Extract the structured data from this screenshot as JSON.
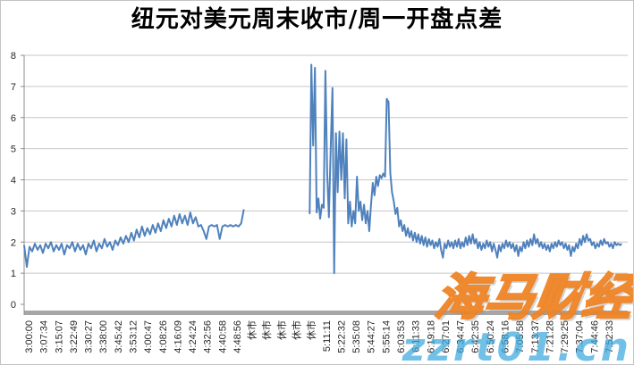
{
  "chart_data": {
    "type": "line",
    "title": "纽元对美元周末收市/周一开盘点差",
    "xlabel": "",
    "ylabel": "",
    "ylim": [
      0,
      8
    ],
    "yticks": [
      0,
      1,
      2,
      3,
      4,
      5,
      6,
      7,
      8
    ],
    "grid": "horizontal",
    "legend": "none",
    "closed_market_label": "休市",
    "categories": [
      "3:00:00",
      "3:07:34",
      "3:15:07",
      "3:22:49",
      "3:30:27",
      "3:38:00",
      "3:45:42",
      "3:53:12",
      "4:00:47",
      "4:08:26",
      "4:16:09",
      "4:24:24",
      "4:32:56",
      "4:40:58",
      "4:48:56",
      "休市",
      "休市",
      "休市",
      "休市",
      "休市",
      "5:11:11",
      "5:22:32",
      "5:35:08",
      "5:44:27",
      "5:55:14",
      "6:03:53",
      "6:11:33",
      "6:19:18",
      "6:27:01",
      "6:34:47",
      "6:42:35",
      "6:50:24",
      "6:58:16",
      "7:05:58",
      "7:13:37",
      "7:21:28",
      "7:29:25",
      "7:37:04",
      "7:44:46",
      "7:52:33"
    ],
    "series_segments": [
      {
        "start_frac": 0.0,
        "end_frac": 0.364,
        "values": [
          1.9,
          1.2,
          1.85,
          1.7,
          1.95,
          1.75,
          1.9,
          1.65,
          1.95,
          1.8,
          2.0,
          1.7,
          1.9,
          1.75,
          1.95,
          1.6,
          1.9,
          1.8,
          2.0,
          1.7,
          1.95,
          1.75,
          1.9,
          1.6,
          1.95,
          1.8,
          2.05,
          1.7,
          1.95,
          1.8,
          2.1,
          1.85,
          2.0,
          1.75,
          2.05,
          1.9,
          2.15,
          1.95,
          2.2,
          2.0,
          2.3,
          2.05,
          2.4,
          2.15,
          2.5,
          2.2,
          2.45,
          2.25,
          2.55,
          2.3,
          2.6,
          2.35,
          2.7,
          2.45,
          2.75,
          2.5,
          2.85,
          2.55,
          2.9,
          2.6,
          2.85,
          2.55,
          2.95,
          2.6,
          2.8,
          2.5,
          2.55,
          2.35,
          2.1,
          2.5,
          2.55,
          2.5,
          2.55,
          2.1,
          2.5,
          2.55,
          2.5,
          2.55,
          2.5,
          2.55,
          2.5,
          2.6,
          3.05
        ]
      },
      {
        "start_frac": 0.473,
        "end_frac": 0.99,
        "values": [
          2.9,
          7.7,
          5.1,
          7.6,
          2.95,
          3.4,
          2.75,
          3.2,
          3.1,
          7.5,
          4.2,
          2.8,
          5.0,
          6.95,
          1.0,
          5.5,
          3.6,
          5.55,
          4.0,
          5.5,
          3.4,
          5.3,
          2.6,
          3.3,
          2.5,
          3.0,
          2.6,
          4.1,
          3.0,
          3.3,
          2.7,
          3.2,
          2.6,
          3.0,
          2.35,
          3.2,
          3.9,
          3.5,
          4.1,
          3.8,
          4.15,
          4.05,
          4.2,
          4.1,
          6.6,
          6.5,
          4.2,
          3.6,
          3.3,
          2.9,
          3.1,
          2.5,
          2.7,
          2.35,
          2.55,
          2.2,
          2.45,
          2.15,
          2.35,
          2.05,
          2.3,
          2.0,
          2.25,
          1.95,
          2.2,
          1.9,
          2.15,
          1.85,
          2.1,
          1.9,
          2.05,
          1.8,
          2.0,
          1.85,
          2.1,
          1.75,
          1.5,
          1.95,
          1.8,
          2.05,
          1.85,
          2.0,
          1.8,
          2.05,
          1.85,
          2.1,
          1.8,
          2.0,
          1.85,
          2.15,
          1.9,
          2.2,
          1.95,
          2.25,
          1.95,
          2.1,
          1.8,
          2.0,
          1.75,
          1.95,
          1.8,
          2.05,
          1.85,
          2.0,
          1.7,
          1.95,
          1.75,
          1.5,
          1.9,
          1.7,
          1.95,
          1.8,
          2.05,
          1.85,
          2.0,
          1.8,
          1.95,
          1.7,
          1.9,
          1.55,
          1.85,
          1.7,
          2.0,
          1.8,
          2.05,
          1.85,
          2.1,
          1.9,
          2.25,
          1.95,
          2.1,
          1.85,
          2.0,
          1.8,
          1.95,
          1.75,
          1.9,
          1.7,
          1.95,
          1.8,
          2.0,
          1.85,
          2.05,
          1.9,
          2.0,
          1.8,
          1.95,
          1.75,
          1.9,
          1.55,
          1.85,
          1.7,
          1.95,
          1.8,
          2.1,
          1.9,
          2.2,
          2.0,
          2.25,
          2.05,
          2.1,
          1.9,
          2.0,
          1.8,
          1.95,
          1.85,
          2.05,
          1.9,
          2.1,
          1.95,
          2.0,
          1.85,
          1.95,
          1.8,
          2.0,
          1.9,
          1.95,
          1.9,
          1.95
        ]
      }
    ]
  },
  "watermarks": {
    "brand": "海马财经",
    "url": "zzrt01.cn"
  },
  "colors": {
    "line": "#4f81bd",
    "grid": "#c6c6c6",
    "axis": "#8c8c8c",
    "axis_bar": "#a6a6a6",
    "title": "#000000",
    "tick_labels": "#262626",
    "watermark_brand": "#ee801e",
    "watermark_url": "#3aa7de"
  }
}
